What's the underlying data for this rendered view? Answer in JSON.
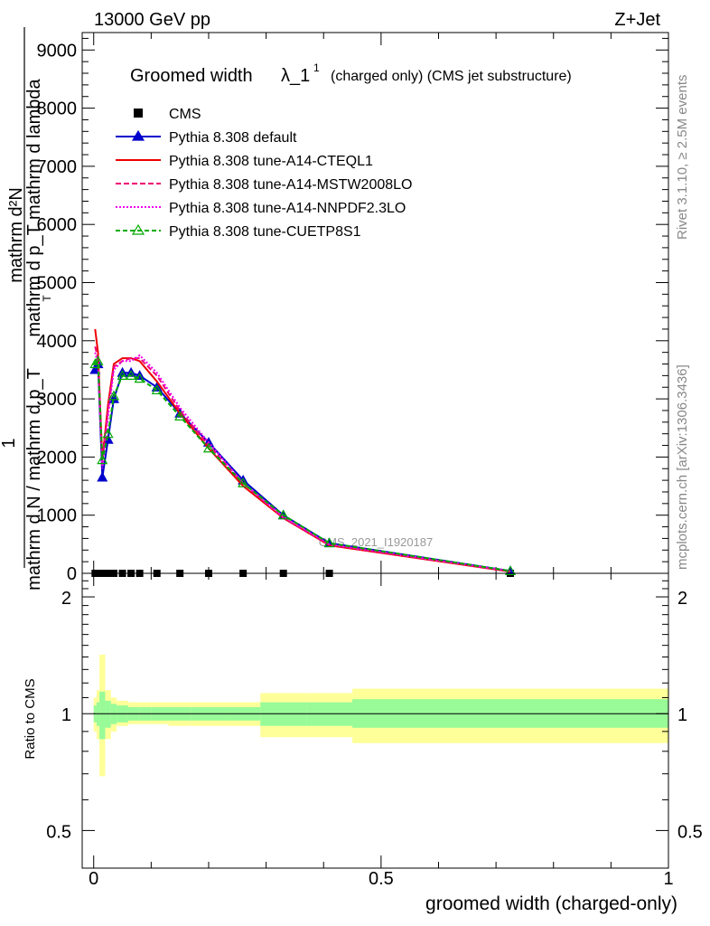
{
  "header": {
    "left": "13000 GeV pp",
    "right": "Z+Jet"
  },
  "side_labels": {
    "rivet": "Rivet 3.1.10, ≥ 2.5M events",
    "mcplots": "mcplots.cern.ch [arXiv:1306.3436]"
  },
  "chart_data": [
    {
      "type": "line",
      "title": "Groomed width",
      "title_lambda": "λ_1",
      "title_sup": "1",
      "title_note": "(charged only) (CMS jet substructure)",
      "ylabel_lines": [
        "mathrm d²N",
        "mathrm d p_T mathrm d lambda",
        "1",
        "mathrm d N / mathrm d p_T"
      ],
      "ylabel_sub": "T",
      "ylim": [
        0,
        9300
      ],
      "xlim": [
        -0.02,
        1.0
      ],
      "y_ticks": [
        0,
        1000,
        2000,
        3000,
        4000,
        5000,
        6000,
        7000,
        8000,
        9000
      ],
      "y_tick_labels": [
        "0",
        "1000",
        "2000",
        "3000",
        "4000",
        "5000",
        "6000",
        "7000",
        "8000",
        "9000"
      ],
      "watermark": "CMS_2021_I1920187",
      "legend": [
        {
          "label": "CMS",
          "color": "#000000",
          "dash": "",
          "marker": "square"
        },
        {
          "label": "Pythia 8.308 default",
          "color": "#0000cc",
          "dash": "",
          "marker": "triangle"
        },
        {
          "label": "Pythia 8.308 tune-A14-CTEQL1",
          "color": "#ee0000",
          "dash": "",
          "marker": "none"
        },
        {
          "label": "Pythia 8.308 tune-A14-MSTW2008LO",
          "color": "#ee0077",
          "dash": "6,3",
          "marker": "none"
        },
        {
          "label": "Pythia 8.308 tune-A14-NNPDF2.3LO",
          "color": "#ee00ee",
          "dash": "2,2",
          "marker": "none"
        },
        {
          "label": "Pythia 8.308 tune-CUETP8S1",
          "color": "#00aa00",
          "dash": "5,3",
          "marker": "triangle-open"
        }
      ],
      "x": [
        0.0025,
        0.0075,
        0.015,
        0.025,
        0.035,
        0.05,
        0.065,
        0.08,
        0.11,
        0.15,
        0.2,
        0.26,
        0.33,
        0.41,
        0.725
      ],
      "series": [
        {
          "name": "CMS",
          "values": [
            0,
            0,
            0,
            0,
            0,
            0,
            0,
            0,
            0,
            0,
            0,
            0,
            0,
            0,
            0
          ]
        },
        {
          "name": "Pythia 8.308 default",
          "values": [
            3500,
            3600,
            1650,
            2300,
            3000,
            3450,
            3450,
            3400,
            3200,
            2750,
            2250,
            1600,
            1000,
            520,
            40
          ]
        },
        {
          "name": "Pythia 8.308 tune-A14-CTEQL1",
          "values": [
            4200,
            3800,
            1950,
            2900,
            3600,
            3700,
            3700,
            3650,
            3300,
            2750,
            2150,
            1500,
            950,
            480,
            30
          ]
        },
        {
          "name": "Pythia 8.308 tune-A14-MSTW2008LO",
          "values": [
            3900,
            3700,
            1900,
            2800,
            3550,
            3650,
            3700,
            3700,
            3400,
            2800,
            2200,
            1550,
            950,
            490,
            35
          ]
        },
        {
          "name": "Pythia 8.308 tune-A14-NNPDF2.3LO",
          "values": [
            3800,
            3600,
            1800,
            2700,
            3500,
            3650,
            3650,
            3750,
            3450,
            2850,
            2250,
            1550,
            970,
            500,
            35
          ]
        },
        {
          "name": "Pythia 8.308 tune-CUETP8S1",
          "values": [
            3600,
            3650,
            1950,
            2400,
            3050,
            3400,
            3400,
            3350,
            3150,
            2700,
            2150,
            1550,
            1000,
            520,
            40
          ]
        }
      ]
    },
    {
      "type": "area",
      "ylabel": "Ratio to CMS",
      "xlabel": "groomed width (charged-only)",
      "xlim": [
        -0.02,
        1.0
      ],
      "ylim": [
        0.4,
        2.3
      ],
      "x_ticks": [
        0,
        0.5,
        1
      ],
      "x_tick_labels": [
        "0",
        "0.5",
        "1"
      ],
      "y_ticks": [
        0.5,
        1,
        2
      ],
      "y_tick_labels": [
        "0.5",
        "1",
        "2"
      ],
      "bins": [
        0,
        0.005,
        0.01,
        0.02,
        0.03,
        0.04,
        0.06,
        0.08,
        0.1,
        0.13,
        0.17,
        0.23,
        0.29,
        0.37,
        0.45,
        1.0
      ],
      "band_inner_low": [
        0.95,
        0.93,
        0.86,
        0.92,
        0.94,
        0.95,
        0.96,
        0.96,
        0.96,
        0.96,
        0.96,
        0.96,
        0.93,
        0.93,
        0.92
      ],
      "band_inner_high": [
        1.05,
        1.07,
        1.14,
        1.08,
        1.06,
        1.05,
        1.04,
        1.04,
        1.04,
        1.04,
        1.04,
        1.04,
        1.07,
        1.07,
        1.09
      ],
      "band_outer_low": [
        0.9,
        0.86,
        0.69,
        0.86,
        0.9,
        0.93,
        0.94,
        0.94,
        0.94,
        0.93,
        0.93,
        0.93,
        0.87,
        0.87,
        0.84
      ],
      "band_outer_high": [
        1.1,
        1.15,
        1.42,
        1.15,
        1.1,
        1.08,
        1.07,
        1.07,
        1.07,
        1.07,
        1.07,
        1.07,
        1.13,
        1.13,
        1.16
      ],
      "ref_line": 1,
      "colors": {
        "inner": "#98fb98",
        "outer": "#ffff99"
      }
    }
  ]
}
